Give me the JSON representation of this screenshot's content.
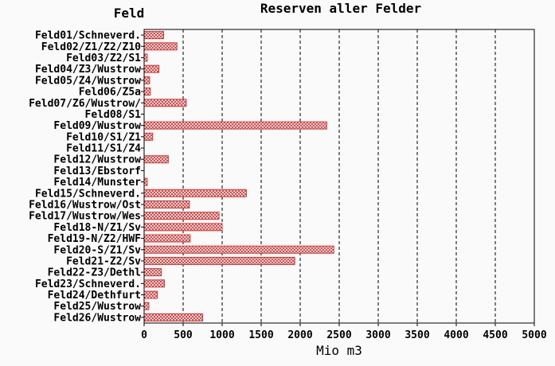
{
  "chart_data": {
    "type": "bar",
    "orientation": "horizontal",
    "title": "Reserven aller Felder",
    "category_axis_title": "Feld",
    "xlabel": "Mio m3",
    "xlim": [
      0,
      5000
    ],
    "xticks": [
      0,
      500,
      1000,
      1500,
      2000,
      2500,
      3000,
      3500,
      4000,
      4500,
      5000
    ],
    "grid": true,
    "bar_color": "#e03030",
    "categories": [
      "Feld01/Schneverd.",
      "Feld02/Z1/Z2/Z10",
      "Feld03/Z2/S1",
      "Feld04/Z3/Wustrow",
      "Feld05/Z4/Wustrow",
      "Feld06/Z5a",
      "Feld07/Z6/Wustrow/",
      "Feld08/S1",
      "Feld09/Wustrow",
      "Feld10/S1/Z1",
      "Feld11/S1/Z4",
      "Feld12/Wustrow",
      "Feld13/Ebstorf",
      "Feld14/Munster",
      "Feld15/Schneverd.",
      "Feld16/Wustrow/Ost",
      "Feld17/Wustrow/Wes",
      "Feld18-N/Z1/Sv",
      "Feld19-N/Z2/HWF",
      "Feld20-S/Z1/Sv",
      "Feld21-Z2/Sv",
      "Feld22-Z3/Dethl",
      "Feld23/Schneverd.",
      "Feld24/Dethfurt",
      "Feld25/Wustrow",
      "Feld26/Wustrow"
    ],
    "values": [
      250,
      420,
      40,
      190,
      70,
      80,
      540,
      0,
      2340,
      110,
      0,
      310,
      0,
      40,
      1310,
      580,
      960,
      1000,
      590,
      2430,
      1930,
      220,
      260,
      170,
      60,
      750
    ]
  }
}
